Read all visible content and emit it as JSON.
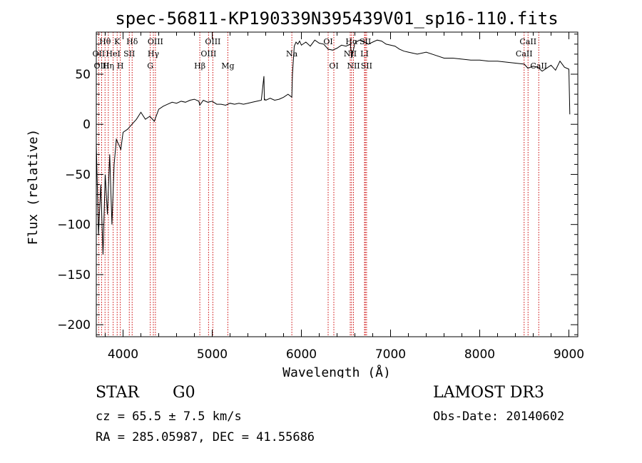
{
  "chart_data": {
    "type": "line",
    "title": "spec-56811-KP190339N395439V01_sp16-110.fits",
    "xlabel": "Wavelength (Å)",
    "ylabel": "Flux (relative)",
    "xlim": [
      3700,
      9100
    ],
    "ylim": [
      -212,
      92
    ],
    "xticks": [
      4000,
      5000,
      6000,
      7000,
      8000,
      9000
    ],
    "yticks": [
      -200,
      -150,
      -100,
      -50,
      0,
      50
    ],
    "tick_labels": {
      "x": [
        "4000",
        "5000",
        "6000",
        "7000",
        "8000",
        "9000"
      ],
      "y": [
        "−200",
        "−150",
        "−100",
        "−50",
        "0",
        "50"
      ]
    },
    "series": [
      {
        "name": "spectrum",
        "x": [
          3700,
          3725,
          3750,
          3775,
          3800,
          3825,
          3850,
          3875,
          3900,
          3925,
          3950,
          3975,
          4000,
          4050,
          4100,
          4150,
          4200,
          4250,
          4300,
          4350,
          4400,
          4450,
          4500,
          4550,
          4600,
          4650,
          4700,
          4750,
          4800,
          4850,
          4860,
          4900,
          4950,
          5000,
          5050,
          5100,
          5150,
          5200,
          5250,
          5300,
          5350,
          5400,
          5450,
          5500,
          5550,
          5580,
          5585,
          5590,
          5600,
          5650,
          5700,
          5750,
          5800,
          5850,
          5893,
          5900,
          5920,
          5940,
          5960,
          5980,
          6000,
          6050,
          6100,
          6150,
          6200,
          6250,
          6300,
          6350,
          6400,
          6450,
          6500,
          6550,
          6563,
          6600,
          6650,
          6700,
          6750,
          6800,
          6850,
          6900,
          6950,
          7000,
          7050,
          7100,
          7150,
          7200,
          7300,
          7400,
          7500,
          7600,
          7700,
          7800,
          7900,
          8000,
          8100,
          8200,
          8300,
          8400,
          8500,
          8540,
          8600,
          8650,
          8700,
          8750,
          8800,
          8850,
          8900,
          8950,
          9000,
          9010
        ],
        "y": [
          -20,
          -110,
          -60,
          -130,
          -50,
          -90,
          -30,
          -100,
          -40,
          -15,
          -20,
          -25,
          -8,
          -5,
          0,
          5,
          12,
          5,
          8,
          3,
          15,
          18,
          20,
          22,
          21,
          23,
          22,
          24,
          25,
          23,
          19,
          24,
          22,
          23,
          20,
          20,
          19,
          21,
          20,
          21,
          20,
          21,
          22,
          23,
          24,
          48,
          24,
          25,
          24,
          26,
          24,
          25,
          27,
          30,
          27,
          50,
          78,
          82,
          80,
          83,
          79,
          82,
          78,
          84,
          81,
          80,
          75,
          74,
          76,
          79,
          78,
          80,
          66,
          81,
          84,
          83,
          80,
          82,
          84,
          83,
          80,
          79,
          78,
          75,
          73,
          72,
          70,
          72,
          69,
          66,
          66,
          65,
          64,
          64,
          63,
          63,
          62,
          61,
          60,
          56,
          58,
          57,
          53,
          56,
          59,
          54,
          63,
          57,
          55,
          10
        ]
      }
    ],
    "lines": [
      {
        "label": "Hθ",
        "wavelength": 3798,
        "row": 0
      },
      {
        "label": "OII",
        "wavelength": 3727,
        "row": 1
      },
      {
        "label": "OIII",
        "wavelength": 3760,
        "row": 2
      },
      {
        "label": "K",
        "wavelength": 3934,
        "row": 0
      },
      {
        "label": "HeI",
        "wavelength": 3889,
        "row": 1
      },
      {
        "label": "Hη",
        "wavelength": 3835,
        "row": 2
      },
      {
        "label": "Hδ",
        "wavelength": 4102,
        "row": 0
      },
      {
        "label": "SII",
        "wavelength": 4070,
        "row": 1
      },
      {
        "label": "H",
        "wavelength": 3969,
        "row": 2
      },
      {
        "label": "OIII",
        "wavelength": 4363,
        "row": 0
      },
      {
        "label": "Hγ",
        "wavelength": 4340,
        "row": 1
      },
      {
        "label": "G",
        "wavelength": 4305,
        "row": 2
      },
      {
        "label": "OIII",
        "wavelength": 5007,
        "row": 0
      },
      {
        "label": "OIII",
        "wavelength": 4959,
        "row": 1
      },
      {
        "label": "Hβ",
        "wavelength": 4861,
        "row": 2
      },
      {
        "label": "Mg",
        "wavelength": 5175,
        "row": 2
      },
      {
        "label": "Na",
        "wavelength": 5893,
        "row": 1
      },
      {
        "label": "OI",
        "wavelength": 6300,
        "row": 0
      },
      {
        "label": "OI",
        "wavelength": 6364,
        "row": 2
      },
      {
        "label": "Hα",
        "wavelength": 6563,
        "row": 0
      },
      {
        "label": "NII",
        "wavelength": 6548,
        "row": 1
      },
      {
        "label": "NII",
        "wavelength": 6584,
        "row": 2
      },
      {
        "label": "SII",
        "wavelength": 6717,
        "row": 0
      },
      {
        "label": "LI",
        "wavelength": 6708,
        "row": 1
      },
      {
        "label": "SII",
        "wavelength": 6731,
        "row": 2
      },
      {
        "label": "CaII",
        "wavelength": 8542,
        "row": 0
      },
      {
        "label": "CaII",
        "wavelength": 8498,
        "row": 1
      },
      {
        "label": "CaII",
        "wavelength": 8662,
        "row": 2
      }
    ]
  },
  "info": {
    "obj_type": "STAR",
    "obj_class": "G0",
    "survey": "LAMOST DR3",
    "cz": "cz = 65.5 ± 7.5 km/s",
    "obs_date": "Obs-Date: 20140602",
    "coords": "RA = 285.05987, DEC =  41.55686"
  },
  "colors": {
    "spectrum": "#000000",
    "line_markers": "#cc0000",
    "axes": "#000000",
    "background": "#ffffff"
  }
}
